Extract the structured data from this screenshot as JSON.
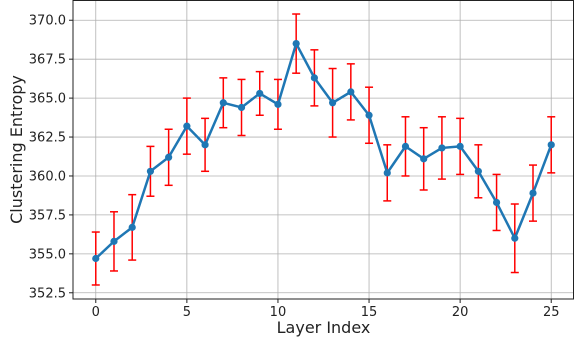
{
  "chart_data": {
    "type": "line",
    "title": "",
    "xlabel": "Layer Index",
    "ylabel": "Clustering Entropy",
    "xlim": [
      -1.25,
      26.25
    ],
    "ylim": [
      352.1,
      371.3
    ],
    "xticks": [
      0,
      5,
      10,
      15,
      20,
      25
    ],
    "yticks": [
      352.5,
      355.0,
      357.5,
      360.0,
      362.5,
      365.0,
      367.5,
      370.0
    ],
    "ytick_labels": [
      "352.5",
      "355.0",
      "357.5",
      "360.0",
      "362.5",
      "365.0",
      "367.5",
      "370.0"
    ],
    "grid": true,
    "legend": "none",
    "series": [
      {
        "x": [
          0,
          1,
          2,
          3,
          4,
          5,
          6,
          7,
          8,
          9,
          10,
          11,
          12,
          13,
          14,
          15,
          16,
          17,
          18,
          19,
          20,
          21,
          22,
          23,
          24,
          25
        ],
        "values": [
          354.7,
          355.8,
          356.7,
          360.3,
          361.2,
          363.2,
          362.0,
          364.7,
          364.4,
          365.3,
          364.6,
          368.5,
          366.3,
          364.7,
          365.4,
          363.9,
          360.2,
          361.9,
          361.1,
          361.8,
          361.9,
          360.3,
          358.3,
          356.0,
          358.9,
          362.0
        ],
        "error": [
          1.7,
          1.9,
          2.1,
          1.6,
          1.8,
          1.8,
          1.7,
          1.6,
          1.8,
          1.4,
          1.6,
          1.9,
          1.8,
          2.2,
          1.8,
          1.8,
          1.8,
          1.9,
          2.0,
          2.0,
          1.8,
          1.7,
          1.8,
          2.2,
          1.8,
          1.8
        ]
      }
    ],
    "colors": {
      "line": "#1f77b4",
      "error_bar": "#ff0000",
      "grid": "#b0b0b0",
      "axes": "#222222"
    }
  }
}
